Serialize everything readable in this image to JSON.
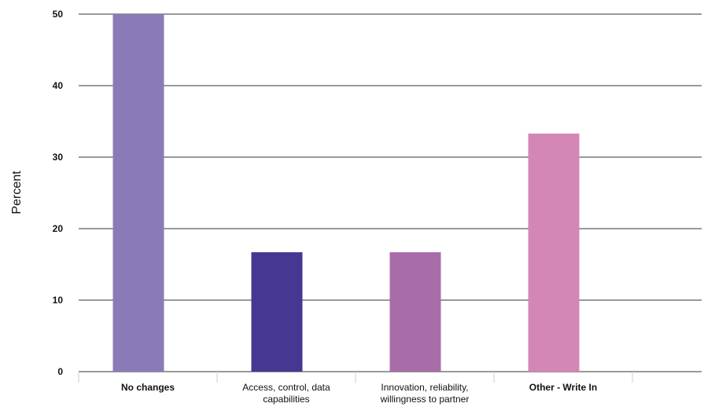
{
  "chart_data": {
    "type": "bar",
    "ylabel": "Percent",
    "xlabel": "",
    "ylim": [
      0,
      50
    ],
    "yticks": [
      0,
      10,
      20,
      30,
      40,
      50
    ],
    "grid": true,
    "categories": [
      {
        "lines": [
          "No changes"
        ],
        "bold": true
      },
      {
        "lines": [
          "Access, control, data",
          "capabilities"
        ],
        "bold": false
      },
      {
        "lines": [
          "Innovation, reliability,",
          "willingness to partner"
        ],
        "bold": false
      },
      {
        "lines": [
          "Other - Write In"
        ],
        "bold": true
      }
    ],
    "values": [
      50,
      16.7,
      16.7,
      33.3
    ],
    "colors": [
      "#8a7bb8",
      "#463892",
      "#a86ca9",
      "#d487b6"
    ]
  }
}
